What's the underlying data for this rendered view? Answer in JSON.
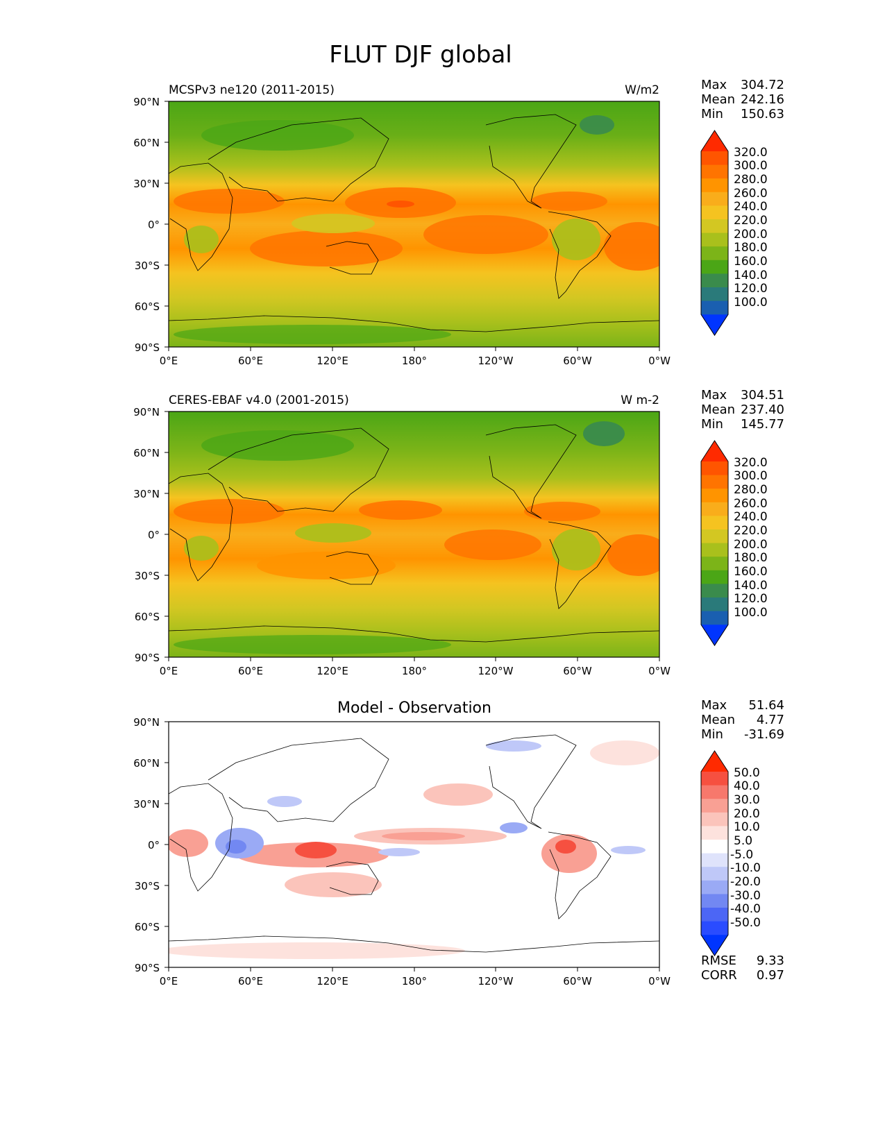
{
  "figure": {
    "title": "FLUT DJF global",
    "x_ticks": [
      "0°E",
      "60°E",
      "120°E",
      "180°",
      "120°W",
      "60°W",
      "0°W"
    ],
    "y_ticks": [
      "90°N",
      "60°N",
      "30°N",
      "0°",
      "30°S",
      "60°S",
      "90°S"
    ]
  },
  "chart_data": [
    {
      "type": "heatmap",
      "title_left": "MCSPv3 ne120 (2011-2015)",
      "title_center": "",
      "title_right": "W/m2",
      "xlim": [
        0,
        360
      ],
      "ylim": [
        -90,
        90
      ],
      "stats": [
        {
          "label": "Max",
          "value": "304.72"
        },
        {
          "label": "Mean",
          "value": "242.16"
        },
        {
          "label": "Min",
          "value": "150.63"
        }
      ],
      "colorbar_levels": [
        "320.0",
        "300.0",
        "280.0",
        "260.0",
        "240.0",
        "220.0",
        "200.0",
        "180.0",
        "160.0",
        "140.0",
        "120.0",
        "100.0"
      ],
      "colorbar_colors": [
        "#ff2a00",
        "#ff5500",
        "#ff7400",
        "#ff9400",
        "#f9ad1b",
        "#f5c320",
        "#d3c722",
        "#a9c01c",
        "#7cb418",
        "#4ba616",
        "#3a8b4c",
        "#2a7a7a",
        "#1a5fb0",
        "#0035ff"
      ]
    },
    {
      "type": "heatmap",
      "title_left": "CERES-EBAF v4.0 (2001-2015)",
      "title_center": "",
      "title_right": "W m-2",
      "xlim": [
        0,
        360
      ],
      "ylim": [
        -90,
        90
      ],
      "stats": [
        {
          "label": "Max",
          "value": "304.51"
        },
        {
          "label": "Mean",
          "value": "237.40"
        },
        {
          "label": "Min",
          "value": "145.77"
        }
      ],
      "colorbar_levels": [
        "320.0",
        "300.0",
        "280.0",
        "260.0",
        "240.0",
        "220.0",
        "200.0",
        "180.0",
        "160.0",
        "140.0",
        "120.0",
        "100.0"
      ],
      "colorbar_colors": [
        "#ff2a00",
        "#ff5500",
        "#ff7400",
        "#ff9400",
        "#f9ad1b",
        "#f5c320",
        "#d3c722",
        "#a9c01c",
        "#7cb418",
        "#4ba616",
        "#3a8b4c",
        "#2a7a7a",
        "#1a5fb0",
        "#0035ff"
      ]
    },
    {
      "type": "heatmap",
      "title_left": "",
      "title_center": "Model - Observation",
      "title_right": "",
      "xlim": [
        0,
        360
      ],
      "ylim": [
        -90,
        90
      ],
      "stats": [
        {
          "label": "Max",
          "value": "51.64"
        },
        {
          "label": "Mean",
          "value": "4.77"
        },
        {
          "label": "Min",
          "value": "-31.69"
        }
      ],
      "colorbar_levels": [
        "50.0",
        "40.0",
        "30.0",
        "20.0",
        "10.0",
        "5.0",
        "-5.0",
        "-10.0",
        "-20.0",
        "-30.0",
        "-40.0",
        "-50.0"
      ],
      "colorbar_colors": [
        "#ff2a00",
        "#f65040",
        "#f7786c",
        "#f9a094",
        "#fbc4bb",
        "#fde2dd",
        "#ffffff",
        "#dfe3fb",
        "#bfc8f8",
        "#9aaaf5",
        "#7288f2",
        "#4c66f5",
        "#2a4cff",
        "#0035ff"
      ],
      "metrics": [
        {
          "label": "RMSE",
          "value": "9.33"
        },
        {
          "label": "CORR",
          "value": "0.97"
        }
      ]
    }
  ]
}
